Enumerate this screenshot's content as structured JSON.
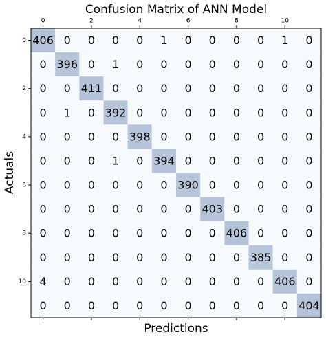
{
  "chart_data": {
    "type": "heatmap",
    "title": "Confusion Matrix of ANN Model",
    "xlabel": "Predictions",
    "ylabel": "Actuals",
    "values": [
      [
        406,
        0,
        0,
        0,
        0,
        1,
        0,
        0,
        0,
        0,
        1,
        0
      ],
      [
        0,
        396,
        0,
        1,
        0,
        0,
        0,
        0,
        0,
        0,
        0,
        0
      ],
      [
        0,
        0,
        411,
        0,
        0,
        0,
        0,
        0,
        0,
        0,
        0,
        0
      ],
      [
        0,
        1,
        0,
        392,
        0,
        0,
        0,
        0,
        0,
        0,
        0,
        0
      ],
      [
        0,
        0,
        0,
        0,
        398,
        0,
        0,
        0,
        0,
        0,
        0,
        0
      ],
      [
        0,
        0,
        0,
        1,
        0,
        394,
        0,
        0,
        0,
        0,
        0,
        0
      ],
      [
        0,
        0,
        0,
        0,
        0,
        0,
        390,
        0,
        0,
        0,
        0,
        0
      ],
      [
        0,
        0,
        0,
        0,
        0,
        0,
        0,
        403,
        0,
        0,
        0,
        0
      ],
      [
        0,
        0,
        0,
        0,
        0,
        0,
        0,
        0,
        406,
        0,
        0,
        0
      ],
      [
        0,
        0,
        0,
        0,
        0,
        0,
        0,
        0,
        0,
        385,
        0,
        0
      ],
      [
        4,
        0,
        0,
        0,
        0,
        0,
        0,
        0,
        0,
        0,
        406,
        0
      ],
      [
        0,
        0,
        0,
        0,
        0,
        0,
        0,
        0,
        0,
        0,
        0,
        404
      ]
    ],
    "xlim": [
      -0.5,
      11.5
    ],
    "ylim": [
      -0.5,
      11.5
    ],
    "xticks": [
      0,
      2,
      4,
      6,
      8,
      10
    ],
    "yticks": [
      0,
      2,
      4,
      6,
      8,
      10
    ],
    "colors": [
      "#f7fafd",
      "#b3c2d7"
    ]
  }
}
